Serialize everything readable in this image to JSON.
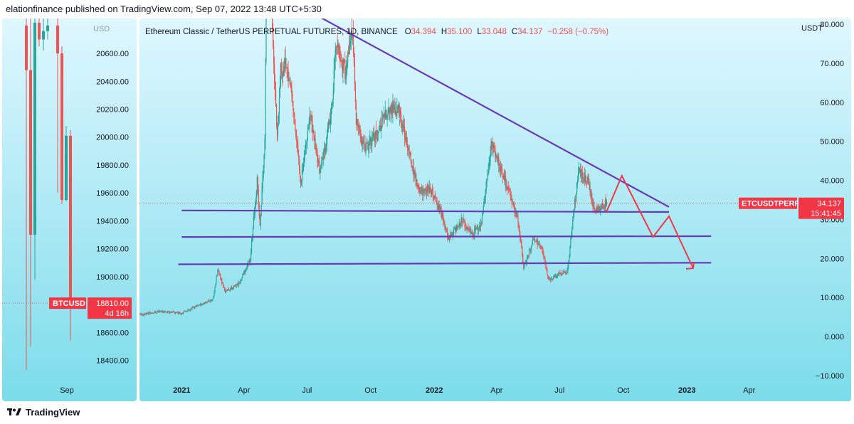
{
  "header": {
    "text": "elationfinance published on TradingView.com, Sep 07, 2022 13:48 UTC+5:30"
  },
  "footer": {
    "brand": "TradingView",
    "logo_icon": "tradingview-logo-icon"
  },
  "colors": {
    "bg_top": "#dff7ff",
    "bg_bottom": "#7bdcea",
    "up": "#26a69a",
    "down": "#ef5350",
    "trendline": "#673ab7",
    "projection": "#f23645",
    "label_bg": "#f23645",
    "axis_text": "#131722"
  },
  "chart_data": [
    {
      "type": "candlestick",
      "symbol": "BTCUSD",
      "price_label": "18810.00",
      "countdown_label": "4d 16h",
      "y_axis_title": "USD",
      "ylim": [
        18250,
        20850
      ],
      "yticks": [
        "20600.00",
        "20400.00",
        "20200.00",
        "20000.00",
        "19800.00",
        "19600.00",
        "19400.00",
        "19200.00",
        "19000.00",
        "18800.00",
        "18600.00",
        "18400.00"
      ],
      "ytick_values": [
        20600,
        20400,
        20200,
        20000,
        19800,
        19600,
        19400,
        19200,
        19000,
        18800,
        18600,
        18400
      ],
      "xtick_label": "Sep",
      "candles": [
        {
          "o": 20800,
          "h": 20900,
          "c": 20480,
          "l": 18330
        },
        {
          "o": 20480,
          "h": 20900,
          "c": 19300,
          "l": 18500
        },
        {
          "o": 19300,
          "h": 20900,
          "c": 20820,
          "l": 18980
        },
        {
          "o": 20820,
          "h": 20900,
          "c": 20700,
          "l": 20650
        },
        {
          "o": 20700,
          "h": 20880,
          "c": 20760,
          "l": 20620
        },
        {
          "o": 20760,
          "h": 20900,
          "c": 20800,
          "l": 20700
        },
        {
          "o": 20800,
          "h": 20900,
          "c": 20600,
          "l": 19600
        },
        {
          "o": 20600,
          "h": 20650,
          "c": 19550,
          "l": 19520
        },
        {
          "o": 19550,
          "h": 20080,
          "c": 20010,
          "l": 19540
        },
        {
          "o": 20010,
          "h": 20050,
          "c": 18810,
          "l": 18540
        }
      ]
    },
    {
      "type": "candlestick",
      "title": "Ethereum Classic / TetherUS PERPETUAL FUTURES, 1D, BINANCE",
      "ohlc": {
        "o_label": "O",
        "o": "34.394",
        "h_label": "H",
        "h": "35.100",
        "l_label": "L",
        "l": "33.048",
        "c_label": "C",
        "c": "34.137",
        "change": "−0.258 (−0.75%)"
      },
      "symbol": "ETCUSDTPERP",
      "price_label": "34.137",
      "countdown_label": "15:41:45",
      "last_price": 34.137,
      "y_axis_title": "USDT",
      "ylim": [
        -11.5,
        81.5
      ],
      "yticks": [
        "80.000",
        "70.000",
        "60.000",
        "50.000",
        "40.000",
        "30.000",
        "20.000",
        "10.000",
        "0.000",
        "−10.000"
      ],
      "ytick_values": [
        80,
        70,
        60,
        50,
        40,
        30,
        20,
        10,
        0,
        -10
      ],
      "xlim": [
        "2020-11-01",
        "2023-06-05"
      ],
      "xticks": [
        {
          "label": "2021",
          "date": "2021-01-01",
          "bold": true
        },
        {
          "label": "Apr",
          "date": "2021-04-01",
          "bold": false
        },
        {
          "label": "Jul",
          "date": "2021-07-01",
          "bold": false
        },
        {
          "label": "Oct",
          "date": "2021-10-01",
          "bold": false
        },
        {
          "label": "2022",
          "date": "2022-01-01",
          "bold": true
        },
        {
          "label": "Apr",
          "date": "2022-04-01",
          "bold": false
        },
        {
          "label": "Jul",
          "date": "2022-07-01",
          "bold": false
        },
        {
          "label": "Oct",
          "date": "2022-10-01",
          "bold": false
        },
        {
          "label": "2023",
          "date": "2023-01-01",
          "bold": true
        },
        {
          "label": "Apr",
          "date": "2023-04-01",
          "bold": false
        }
      ],
      "price_path": [
        {
          "date": "2020-11-01",
          "price": 5.5
        },
        {
          "date": "2020-12-01",
          "price": 6.5
        },
        {
          "date": "2021-01-01",
          "price": 6.0
        },
        {
          "date": "2021-01-25",
          "price": 8.0
        },
        {
          "date": "2021-02-15",
          "price": 9.5
        },
        {
          "date": "2021-02-22",
          "price": 17.0
        },
        {
          "date": "2021-03-05",
          "price": 11.5
        },
        {
          "date": "2021-03-25",
          "price": 13.5
        },
        {
          "date": "2021-04-10",
          "price": 20.0
        },
        {
          "date": "2021-04-20",
          "price": 40.0
        },
        {
          "date": "2021-04-24",
          "price": 28.0
        },
        {
          "date": "2021-05-01",
          "price": 50.0
        },
        {
          "date": "2021-05-06",
          "price": 140.0
        },
        {
          "date": "2021-05-12",
          "price": 78.0
        },
        {
          "date": "2021-05-19",
          "price": 50.0
        },
        {
          "date": "2021-05-24",
          "price": 68.0
        },
        {
          "date": "2021-06-01",
          "price": 70.0
        },
        {
          "date": "2021-06-10",
          "price": 60.0
        },
        {
          "date": "2021-06-22",
          "price": 40.0
        },
        {
          "date": "2021-07-05",
          "price": 57.0
        },
        {
          "date": "2021-07-20",
          "price": 42.0
        },
        {
          "date": "2021-08-05",
          "price": 57.0
        },
        {
          "date": "2021-08-12",
          "price": 75.0
        },
        {
          "date": "2021-08-25",
          "price": 68.0
        },
        {
          "date": "2021-09-05",
          "price": 78.0
        },
        {
          "date": "2021-09-10",
          "price": 55.0
        },
        {
          "date": "2021-09-22",
          "price": 48.0
        },
        {
          "date": "2021-10-10",
          "price": 52.0
        },
        {
          "date": "2021-10-25",
          "price": 58.0
        },
        {
          "date": "2021-11-10",
          "price": 58.0
        },
        {
          "date": "2021-11-25",
          "price": 47.0
        },
        {
          "date": "2021-12-10",
          "price": 37.0
        },
        {
          "date": "2021-12-25",
          "price": 38.0
        },
        {
          "date": "2022-01-10",
          "price": 32.0
        },
        {
          "date": "2022-01-22",
          "price": 25.0
        },
        {
          "date": "2022-02-10",
          "price": 30.0
        },
        {
          "date": "2022-02-24",
          "price": 26.0
        },
        {
          "date": "2022-03-10",
          "price": 29.0
        },
        {
          "date": "2022-03-25",
          "price": 50.0
        },
        {
          "date": "2022-04-05",
          "price": 44.0
        },
        {
          "date": "2022-04-20",
          "price": 36.0
        },
        {
          "date": "2022-05-01",
          "price": 31.0
        },
        {
          "date": "2022-05-10",
          "price": 18.0
        },
        {
          "date": "2022-05-25",
          "price": 25.0
        },
        {
          "date": "2022-06-05",
          "price": 23.0
        },
        {
          "date": "2022-06-15",
          "price": 14.5
        },
        {
          "date": "2022-06-30",
          "price": 16.0
        },
        {
          "date": "2022-07-12",
          "price": 16.5
        },
        {
          "date": "2022-07-28",
          "price": 42.0
        },
        {
          "date": "2022-08-12",
          "price": 40.0
        },
        {
          "date": "2022-08-20",
          "price": 32.0
        },
        {
          "date": "2022-08-30",
          "price": 33.0
        },
        {
          "date": "2022-09-07",
          "price": 34.137
        }
      ],
      "trendlines": [
        {
          "name": "descending-resistance",
          "from": {
            "date": "2021-06-12",
            "price": 85.5
          },
          "to": {
            "date": "2022-12-06",
            "price": 33.2
          }
        },
        {
          "name": "support-upper",
          "from": {
            "date": "2021-01-01",
            "price": 32.3
          },
          "to": {
            "date": "2022-12-06",
            "price": 31.9
          }
        },
        {
          "name": "support-middle",
          "from": {
            "date": "2021-01-01",
            "price": 25.5
          },
          "to": {
            "date": "2023-02-05",
            "price": 25.7
          }
        },
        {
          "name": "support-lower",
          "from": {
            "date": "2020-12-27",
            "price": 18.5
          },
          "to": {
            "date": "2023-02-05",
            "price": 18.9
          }
        }
      ],
      "projection_path": [
        {
          "date": "2022-09-07",
          "price": 32.0
        },
        {
          "date": "2022-09-29",
          "price": 41.2
        },
        {
          "date": "2022-11-13",
          "price": 25.5
        },
        {
          "date": "2022-12-06",
          "price": 30.8
        },
        {
          "date": "2023-01-10",
          "price": 17.5
        }
      ]
    }
  ]
}
